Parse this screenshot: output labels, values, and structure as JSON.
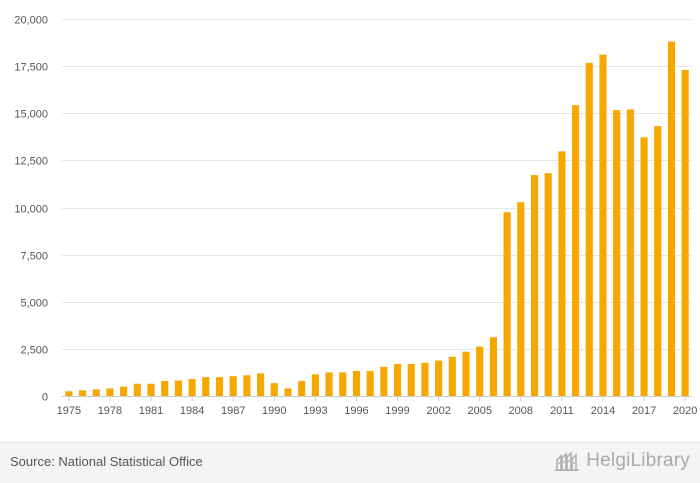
{
  "chart_data": {
    "type": "bar",
    "color": "#f5a800",
    "grid": true,
    "ylim": [
      0,
      20000
    ],
    "yticks": [
      0,
      2500,
      5000,
      7500,
      10000,
      12500,
      15000,
      17500,
      20000
    ],
    "ytick_labels": [
      "0",
      "2,500",
      "5,000",
      "7,500",
      "10,000",
      "12,500",
      "15,000",
      "17,500",
      "20,000"
    ],
    "categories": [
      1975,
      1976,
      1977,
      1978,
      1979,
      1980,
      1981,
      1982,
      1983,
      1984,
      1985,
      1986,
      1987,
      1988,
      1989,
      1990,
      1991,
      1992,
      1993,
      1994,
      1995,
      1996,
      1997,
      1998,
      1999,
      2000,
      2001,
      2002,
      2003,
      2004,
      2005,
      2006,
      2007,
      2008,
      2009,
      2010,
      2011,
      2012,
      2013,
      2014,
      2015,
      2016,
      2017,
      2018,
      2019,
      2020
    ],
    "values": [
      250,
      300,
      350,
      400,
      500,
      650,
      650,
      800,
      820,
      900,
      1000,
      1000,
      1050,
      1100,
      1200,
      680,
      400,
      800,
      1150,
      1250,
      1250,
      1330,
      1330,
      1550,
      1700,
      1700,
      1760,
      1880,
      2080,
      2350,
      2620,
      3120,
      9750,
      10280,
      11720,
      11820,
      12980,
      15430,
      17670,
      18110,
      15170,
      15200,
      13720,
      14320,
      18800,
      17300
    ],
    "xtick_labels": [
      "1975",
      "1978",
      "1981",
      "1984",
      "1987",
      "1990",
      "1993",
      "1996",
      "1999",
      "2002",
      "2005",
      "2008",
      "2011",
      "2014",
      "2017",
      "2020"
    ]
  },
  "footer": {
    "source": "Source: National Statistical Office",
    "logo_text": "HelgiLibrary",
    "logo_icon": "library-building-icon"
  }
}
